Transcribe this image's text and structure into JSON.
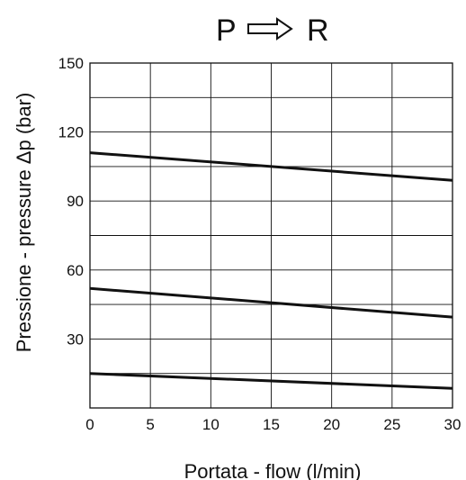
{
  "chart_data": {
    "type": "line",
    "title_left": "P",
    "title_right": "R",
    "title_arrow_icon": "outline-right-arrow-icon",
    "xlabel": "Portata - flow (l/min)",
    "ylabel": "Pressione - pressure Δp (bar)",
    "xlim": [
      0,
      30
    ],
    "ylim": [
      0,
      150
    ],
    "x_ticks": [
      "0",
      "5",
      "10",
      "15",
      "20",
      "25",
      "30"
    ],
    "y_ticks": [
      "30",
      "60",
      "90",
      "120",
      "150"
    ],
    "grid": true,
    "line_color": "#111111",
    "series": [
      {
        "x": [
          0,
          30
        ],
        "y": [
          111,
          99
        ]
      },
      {
        "x": [
          0,
          30
        ],
        "y": [
          52,
          39.5
        ]
      },
      {
        "x": [
          0,
          30
        ],
        "y": [
          15,
          8.5
        ]
      }
    ]
  }
}
